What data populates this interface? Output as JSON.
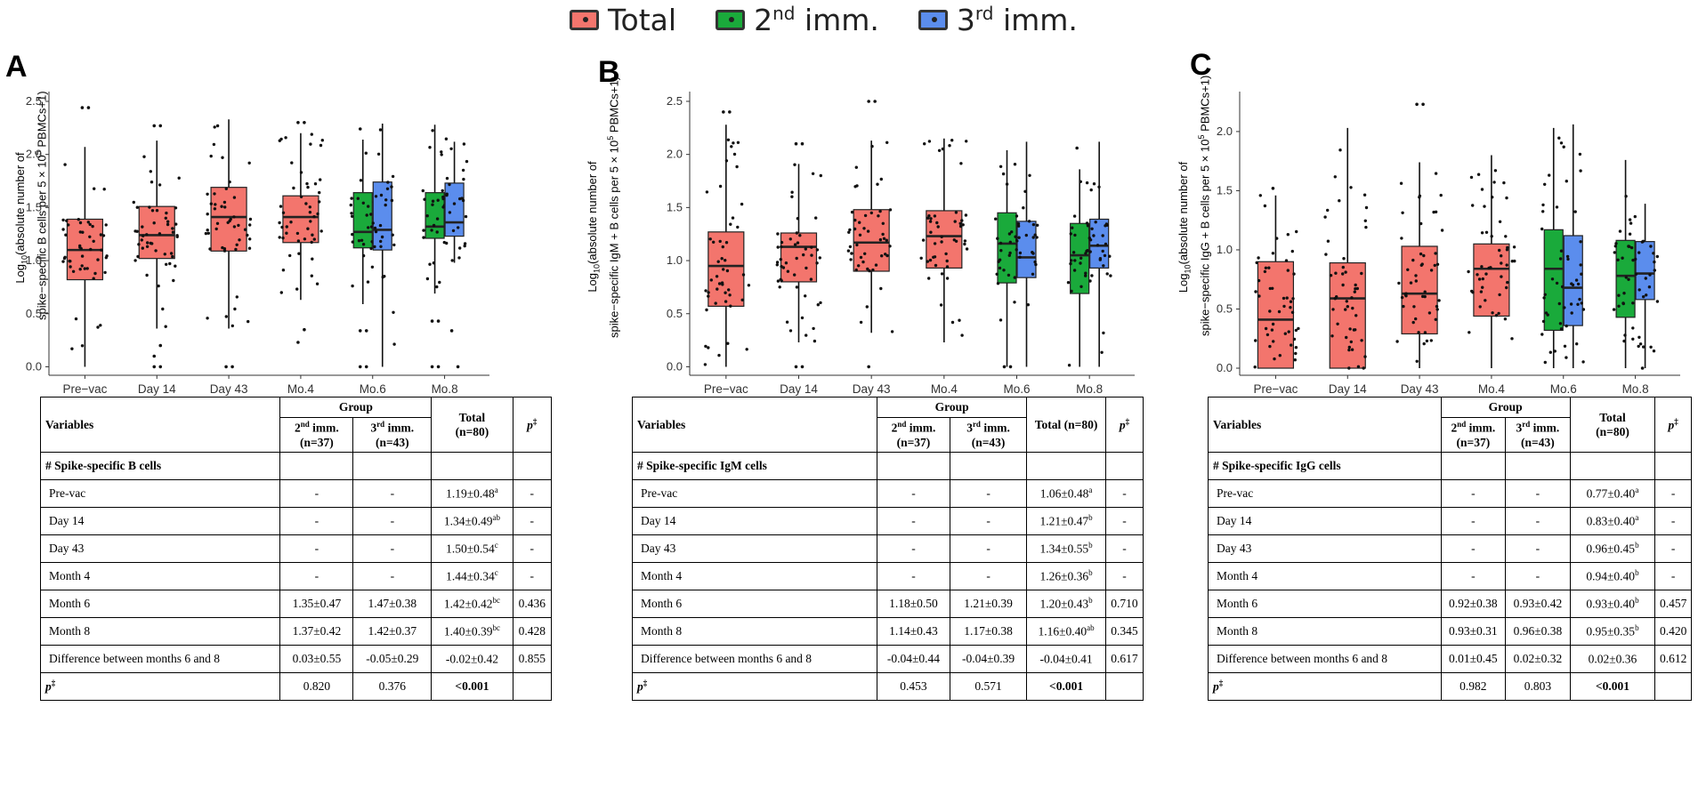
{
  "legend": {
    "items": [
      {
        "label": "Total",
        "sup": "",
        "suffix": "",
        "color": "#f3756d"
      },
      {
        "label": "2",
        "sup": "nd",
        "suffix": " imm.",
        "color": "#1aaa3b"
      },
      {
        "label": "3",
        "sup": "rd",
        "suffix": " imm.",
        "color": "#5b8ded"
      }
    ]
  },
  "colors": {
    "total": "#f3756d",
    "g2": "#1aaa3b",
    "g3": "#5b8ded"
  },
  "panels": [
    {
      "letter": "A",
      "ylabel_line1": "Log",
      "ylabel_sub": "10",
      "ylabel_line1b": "(absolute number of",
      "ylabel_line2a": "spike−specific B cells per 5 × 10",
      "ylabel_sup": "5",
      "ylabel_line2b": " PBMCs+1)",
      "chart_data": {
        "type": "box",
        "categories": [
          "Pre−vac",
          "Day 14",
          "Day 43",
          "Mo.4",
          "Mo.6",
          "Mo.8"
        ],
        "yticks": [
          "0.0",
          "0.5",
          "1.0",
          "1.5",
          "2.0",
          "2.5"
        ],
        "ylim": [
          -0.08,
          2.55
        ],
        "boxes": [
          {
            "cat": 0,
            "group": "total",
            "q1": 0.82,
            "med": 1.1,
            "q3": 1.39,
            "lo": 0.0,
            "hi": 2.07,
            "out": [
              2.44,
              2.44
            ]
          },
          {
            "cat": 1,
            "group": "total",
            "q1": 1.02,
            "med": 1.24,
            "q3": 1.51,
            "lo": 0.36,
            "hi": 2.13,
            "out": [
              2.27,
              2.27,
              0.0,
              0.0,
              0.1,
              0.2
            ]
          },
          {
            "cat": 2,
            "group": "total",
            "q1": 1.09,
            "med": 1.41,
            "q3": 1.69,
            "lo": 0.36,
            "hi": 2.33,
            "out": [
              0.0,
              0.0
            ]
          },
          {
            "cat": 3,
            "group": "total",
            "q1": 1.17,
            "med": 1.41,
            "q3": 1.61,
            "lo": 0.63,
            "hi": 2.2,
            "out": [
              2.3,
              2.3,
              0.23,
              0.35
            ]
          },
          {
            "cat": 4,
            "group": "g2",
            "q1": 1.12,
            "med": 1.27,
            "q3": 1.64,
            "lo": 0.59,
            "hi": 2.14,
            "out": [
              2.24,
              0.34,
              0.34,
              0.0,
              0.0
            ]
          },
          {
            "cat": 4,
            "group": "g3",
            "q1": 1.1,
            "med": 1.29,
            "q3": 1.74,
            "lo": 0.0,
            "hi": 2.29,
            "out": []
          },
          {
            "cat": 5,
            "group": "g2",
            "q1": 1.21,
            "med": 1.32,
            "q3": 1.64,
            "lo": 0.69,
            "hi": 2.28,
            "out": [
              0.43,
              0.43,
              0.0,
              0.0
            ]
          },
          {
            "cat": 5,
            "group": "g3",
            "q1": 1.23,
            "med": 1.36,
            "q3": 1.73,
            "lo": 0.98,
            "hi": 2.12,
            "out": [
              0.34,
              0.0
            ]
          }
        ]
      },
      "table": {
        "h_variables": "Variables",
        "h_group": "Group",
        "h_g2_a": "2",
        "h_g2_sup": "nd",
        "h_g2_b": " imm.",
        "h_g2_n": "(n=37)",
        "h_g3_a": "3",
        "h_g3_sup": "rd",
        "h_g3_b": " imm.",
        "h_g3_n": "(n=43)",
        "h_total": "Total",
        "h_total_n": "(n=80)",
        "h_p": "p",
        "h_p_sup": "‡",
        "section": "# Spike-specific B cells",
        "rows": [
          {
            "label": "Pre-vac",
            "g2": "-",
            "g3": "-",
            "total": "1.19±0.48",
            "tsup": "a",
            "p": "-"
          },
          {
            "label": "Day 14",
            "g2": "-",
            "g3": "-",
            "total": "1.34±0.49",
            "tsup": "ab",
            "p": "-"
          },
          {
            "label": "Day 43",
            "g2": "-",
            "g3": "-",
            "total": "1.50±0.54",
            "tsup": "c",
            "p": "-"
          },
          {
            "label": "Month 4",
            "g2": "-",
            "g3": "-",
            "total": "1.44±0.34",
            "tsup": "c",
            "p": "-"
          },
          {
            "label": "Month 6",
            "g2": "1.35±0.47",
            "g3": "1.47±0.38",
            "total": "1.42±0.42",
            "tsup": "bc",
            "p": "0.436"
          },
          {
            "label": "Month 8",
            "g2": "1.37±0.42",
            "g3": "1.42±0.37",
            "total": "1.40±0.39",
            "tsup": "bc",
            "p": "0.428"
          },
          {
            "label": "Difference between months 6 and 8",
            "g2": "0.03±0.55",
            "g3": "-0.05±0.29",
            "total": "-0.02±0.42",
            "tsup": "",
            "p": "0.855"
          }
        ],
        "pfoot_label": "p",
        "pfoot_sup": "‡",
        "pfoot_g2": "0.820",
        "pfoot_g3": "0.376",
        "pfoot_total": "<0.001"
      }
    },
    {
      "letter": "B",
      "ylabel_line1": "Log",
      "ylabel_sub": "10",
      "ylabel_line1b": "(absolute number of",
      "ylabel_line2a": "spike−specific IgM + B cells per 5 × 10",
      "ylabel_sup": "5",
      "ylabel_line2b": " PBMCs+1)",
      "chart_data": {
        "type": "box",
        "categories": [
          "Pre−vac",
          "Day 14",
          "Day 43",
          "Mo.4",
          "Mo.6",
          "Mo.8"
        ],
        "yticks": [
          "0.0",
          "0.5",
          "1.0",
          "1.5",
          "2.0",
          "2.5"
        ],
        "ylim": [
          -0.08,
          2.55
        ],
        "boxes": [
          {
            "cat": 0,
            "group": "total",
            "q1": 0.57,
            "med": 0.95,
            "q3": 1.27,
            "lo": 0.0,
            "hi": 2.28,
            "out": [
              2.4,
              2.4
            ]
          },
          {
            "cat": 1,
            "group": "total",
            "q1": 0.8,
            "med": 1.13,
            "q3": 1.26,
            "lo": 0.23,
            "hi": 1.91,
            "out": [
              2.1,
              2.1,
              0.0,
              0.0
            ]
          },
          {
            "cat": 2,
            "group": "total",
            "q1": 0.9,
            "med": 1.17,
            "q3": 1.48,
            "lo": 0.32,
            "hi": 2.13,
            "out": [
              2.5,
              2.5,
              0.0
            ]
          },
          {
            "cat": 3,
            "group": "total",
            "q1": 0.93,
            "med": 1.23,
            "q3": 1.47,
            "lo": 0.23,
            "hi": 2.15,
            "out": []
          },
          {
            "cat": 4,
            "group": "g2",
            "q1": 0.79,
            "med": 1.16,
            "q3": 1.45,
            "lo": 0.0,
            "hi": 2.04,
            "out": [
              0.0,
              0.0
            ]
          },
          {
            "cat": 4,
            "group": "g3",
            "q1": 0.84,
            "med": 1.03,
            "q3": 1.37,
            "lo": 0.0,
            "hi": 2.12,
            "out": []
          },
          {
            "cat": 5,
            "group": "g2",
            "q1": 0.69,
            "med": 1.05,
            "q3": 1.35,
            "lo": 0.0,
            "hi": 1.86,
            "out": [
              2.06
            ]
          },
          {
            "cat": 5,
            "group": "g3",
            "q1": 0.93,
            "med": 1.14,
            "q3": 1.39,
            "lo": 0.0,
            "hi": 2.12,
            "out": []
          }
        ]
      },
      "table": {
        "h_variables": "Variables",
        "h_group": "Group",
        "h_g2_a": "2",
        "h_g2_sup": "nd",
        "h_g2_b": " imm.",
        "h_g2_n": "(n=37)",
        "h_g3_a": "3",
        "h_g3_sup": "rd",
        "h_g3_b": " imm.",
        "h_g3_n": "(n=43)",
        "h_total": "Total (n=80)",
        "h_total_n": "",
        "h_p": "p",
        "h_p_sup": "‡",
        "section": "# Spike-specific IgM cells",
        "rows": [
          {
            "label": "Pre-vac",
            "g2": "-",
            "g3": "-",
            "total": "1.06±0.48",
            "tsup": "a",
            "p": "-"
          },
          {
            "label": "Day 14",
            "g2": "-",
            "g3": "-",
            "total": "1.21±0.47",
            "tsup": "b",
            "p": "-"
          },
          {
            "label": "Day 43",
            "g2": "-",
            "g3": "-",
            "total": "1.34±0.55",
            "tsup": "b",
            "p": "-"
          },
          {
            "label": "Month 4",
            "g2": "-",
            "g3": "-",
            "total": "1.26±0.36",
            "tsup": "b",
            "p": "-"
          },
          {
            "label": "Month 6",
            "g2": "1.18±0.50",
            "g3": "1.21±0.39",
            "total": "1.20±0.43",
            "tsup": "b",
            "p": "0.710"
          },
          {
            "label": "Month 8",
            "g2": "1.14±0.43",
            "g3": "1.17±0.38",
            "total": "1.16±0.40",
            "tsup": "ab",
            "p": "0.345"
          },
          {
            "label": "Difference between months 6 and 8",
            "g2": "-0.04±0.44",
            "g3": "-0.04±0.39",
            "total": "-0.04±0.41",
            "tsup": "",
            "p": "0.617"
          }
        ],
        "pfoot_label": "p",
        "pfoot_sup": "‡",
        "pfoot_g2": "0.453",
        "pfoot_g3": "0.571",
        "pfoot_total": "<0.001"
      }
    },
    {
      "letter": "C",
      "ylabel_line1": "Log",
      "ylabel_sub": "10",
      "ylabel_line1b": "(absolute number of",
      "ylabel_line2a": "spike−specific IgG + B cells per 5 × 10",
      "ylabel_sup": "5",
      "ylabel_line2b": " PBMCs+1)",
      "chart_data": {
        "type": "box",
        "categories": [
          "Pre−vac",
          "Day 14",
          "Day 43",
          "Mo.4",
          "Mo.6",
          "Mo.8"
        ],
        "yticks": [
          "0.0",
          "0.5",
          "1.0",
          "1.5",
          "2.0"
        ],
        "ylim": [
          -0.06,
          2.3
        ],
        "boxes": [
          {
            "cat": 0,
            "group": "total",
            "q1": 0.0,
            "med": 0.41,
            "q3": 0.9,
            "lo": 0.0,
            "hi": 1.46,
            "out": [
              1.52
            ]
          },
          {
            "cat": 1,
            "group": "total",
            "q1": 0.0,
            "med": 0.59,
            "q3": 0.89,
            "lo": 0.0,
            "hi": 2.03,
            "out": []
          },
          {
            "cat": 2,
            "group": "total",
            "q1": 0.29,
            "med": 0.63,
            "q3": 1.03,
            "lo": 0.0,
            "hi": 1.74,
            "out": [
              2.23,
              2.23
            ]
          },
          {
            "cat": 3,
            "group": "total",
            "q1": 0.44,
            "med": 0.84,
            "q3": 1.05,
            "lo": 0.0,
            "hi": 1.8,
            "out": []
          },
          {
            "cat": 4,
            "group": "g2",
            "q1": 0.32,
            "med": 0.84,
            "q3": 1.17,
            "lo": 0.0,
            "hi": 2.03,
            "out": []
          },
          {
            "cat": 4,
            "group": "g3",
            "q1": 0.36,
            "med": 0.68,
            "q3": 1.12,
            "lo": 0.0,
            "hi": 2.06,
            "out": []
          },
          {
            "cat": 5,
            "group": "g2",
            "q1": 0.43,
            "med": 0.78,
            "q3": 1.08,
            "lo": 0.0,
            "hi": 1.76,
            "out": []
          },
          {
            "cat": 5,
            "group": "g3",
            "q1": 0.58,
            "med": 0.8,
            "q3": 1.07,
            "lo": 0.0,
            "hi": 1.39,
            "out": [
              0.0
            ]
          }
        ]
      },
      "table": {
        "h_variables": "Variables",
        "h_group": "Group",
        "h_g2_a": "2",
        "h_g2_sup": "nd",
        "h_g2_b": " imm.",
        "h_g2_n": "(n=37)",
        "h_g3_a": "3",
        "h_g3_sup": "rd",
        "h_g3_b": " imm.",
        "h_g3_n": "(n=43)",
        "h_total": "Total",
        "h_total_n": "(n=80)",
        "h_p": "p",
        "h_p_sup": "‡",
        "section": "# Spike-specific IgG cells",
        "rows": [
          {
            "label": "Pre-vac",
            "g2": "-",
            "g3": "-",
            "total": "0.77±0.40",
            "tsup": "a",
            "p": "-"
          },
          {
            "label": "Day 14",
            "g2": "-",
            "g3": "-",
            "total": "0.83±0.40",
            "tsup": "a",
            "p": "-"
          },
          {
            "label": "Day 43",
            "g2": "-",
            "g3": "-",
            "total": "0.96±0.45",
            "tsup": "b",
            "p": "-"
          },
          {
            "label": "Month 4",
            "g2": "-",
            "g3": "-",
            "total": "0.94±0.40",
            "tsup": "b",
            "p": "-"
          },
          {
            "label": "Month 6",
            "g2": "0.92±0.38",
            "g3": "0.93±0.42",
            "total": "0.93±0.40",
            "tsup": "b",
            "p": "0.457"
          },
          {
            "label": "Month 8",
            "g2": "0.93±0.31",
            "g3": "0.96±0.38",
            "total": "0.95±0.35",
            "tsup": "b",
            "p": "0.420"
          },
          {
            "label": "Difference between months 6 and 8",
            "g2": "0.01±0.45",
            "g3": "0.02±0.32",
            "total": "0.02±0.36",
            "tsup": "",
            "p": "0.612"
          }
        ],
        "pfoot_label": "p",
        "pfoot_sup": "‡",
        "pfoot_g2": "0.982",
        "pfoot_g3": "0.803",
        "pfoot_total": "<0.001"
      }
    }
  ]
}
